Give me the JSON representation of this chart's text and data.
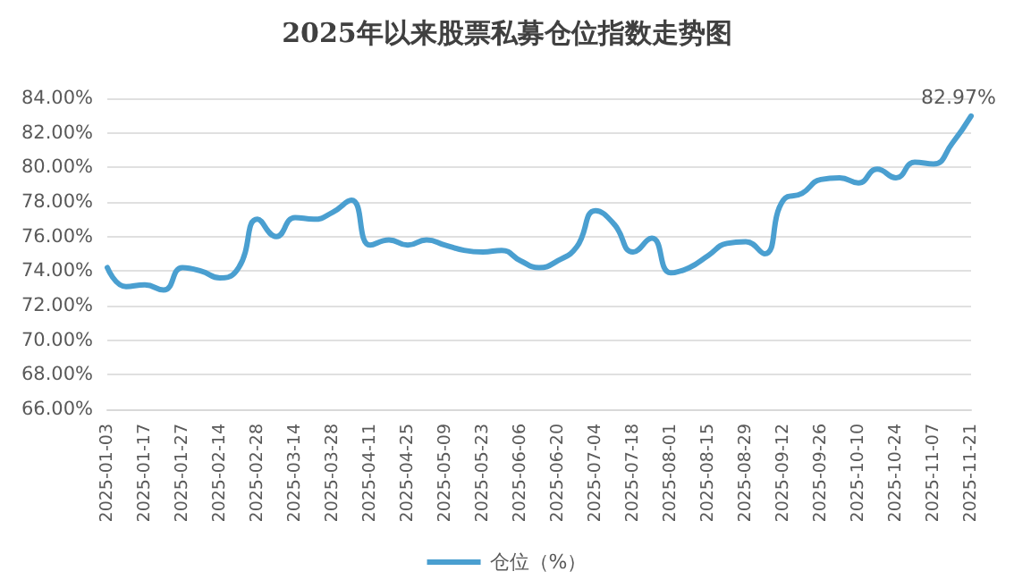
{
  "chart_data": {
    "type": "line",
    "title": "2025年以来股票私募仓位指数走势图",
    "categories": [
      "2025-01-03",
      null,
      "2025-01-17",
      null,
      "2025-01-27",
      null,
      "2025-02-14",
      null,
      "2025-02-28",
      null,
      "2025-03-14",
      null,
      "2025-03-28",
      null,
      "2025-04-11",
      null,
      "2025-04-25",
      null,
      "2025-05-09",
      null,
      "2025-05-23",
      null,
      "2025-06-06",
      null,
      "2025-06-20",
      null,
      "2025-07-04",
      null,
      "2025-07-18",
      null,
      "2025-08-01",
      null,
      "2025-08-15",
      null,
      "2025-08-29",
      null,
      "2025-09-12",
      null,
      "2025-09-26",
      null,
      "2025-10-10",
      null,
      "2025-10-24",
      null,
      "2025-11-07",
      null,
      "2025-11-21"
    ],
    "series": [
      {
        "name": "仓位（%）",
        "color": "#4a9fd0",
        "values": [
          74.2,
          73.1,
          73.2,
          72.9,
          74.2,
          74.0,
          73.6,
          74.2,
          77.0,
          76.0,
          77.1,
          77.0,
          77.4,
          78.1,
          75.5,
          75.8,
          75.5,
          75.8,
          75.5,
          75.2,
          75.1,
          75.2,
          74.6,
          74.2,
          74.6,
          75.4,
          77.5,
          76.7,
          75.1,
          75.9,
          73.9,
          74.2,
          74.9,
          75.6,
          75.7,
          75.0,
          78.1,
          78.5,
          79.3,
          79.4,
          79.1,
          79.9,
          79.4,
          80.3,
          80.2,
          81.4,
          82.97
        ],
        "value_labels": [
          null,
          null,
          null,
          null,
          null,
          null,
          null,
          null,
          null,
          null,
          null,
          null,
          null,
          null,
          null,
          null,
          null,
          null,
          null,
          null,
          null,
          null,
          null,
          null,
          null,
          null,
          null,
          null,
          null,
          null,
          null,
          null,
          null,
          null,
          null,
          null,
          null,
          null,
          null,
          null,
          null,
          null,
          null,
          null,
          null,
          null,
          "82.97%"
        ]
      }
    ],
    "ylim": [
      66,
      84
    ],
    "yticks": [
      {
        "value": 66,
        "label": "66.00%"
      },
      {
        "value": 68,
        "label": "68.00%"
      },
      {
        "value": 70,
        "label": "70.00%"
      },
      {
        "value": 72,
        "label": "72.00%"
      },
      {
        "value": 74,
        "label": "74.00%"
      },
      {
        "value": 76,
        "label": "76.00%"
      },
      {
        "value": 78,
        "label": "78.00%"
      },
      {
        "value": 80,
        "label": "80.00%"
      },
      {
        "value": 82,
        "label": "82.00%"
      },
      {
        "value": 84,
        "label": "84.00%"
      }
    ],
    "grid": "y",
    "legend": "bottom",
    "marker": "none",
    "line_style": "solid"
  }
}
